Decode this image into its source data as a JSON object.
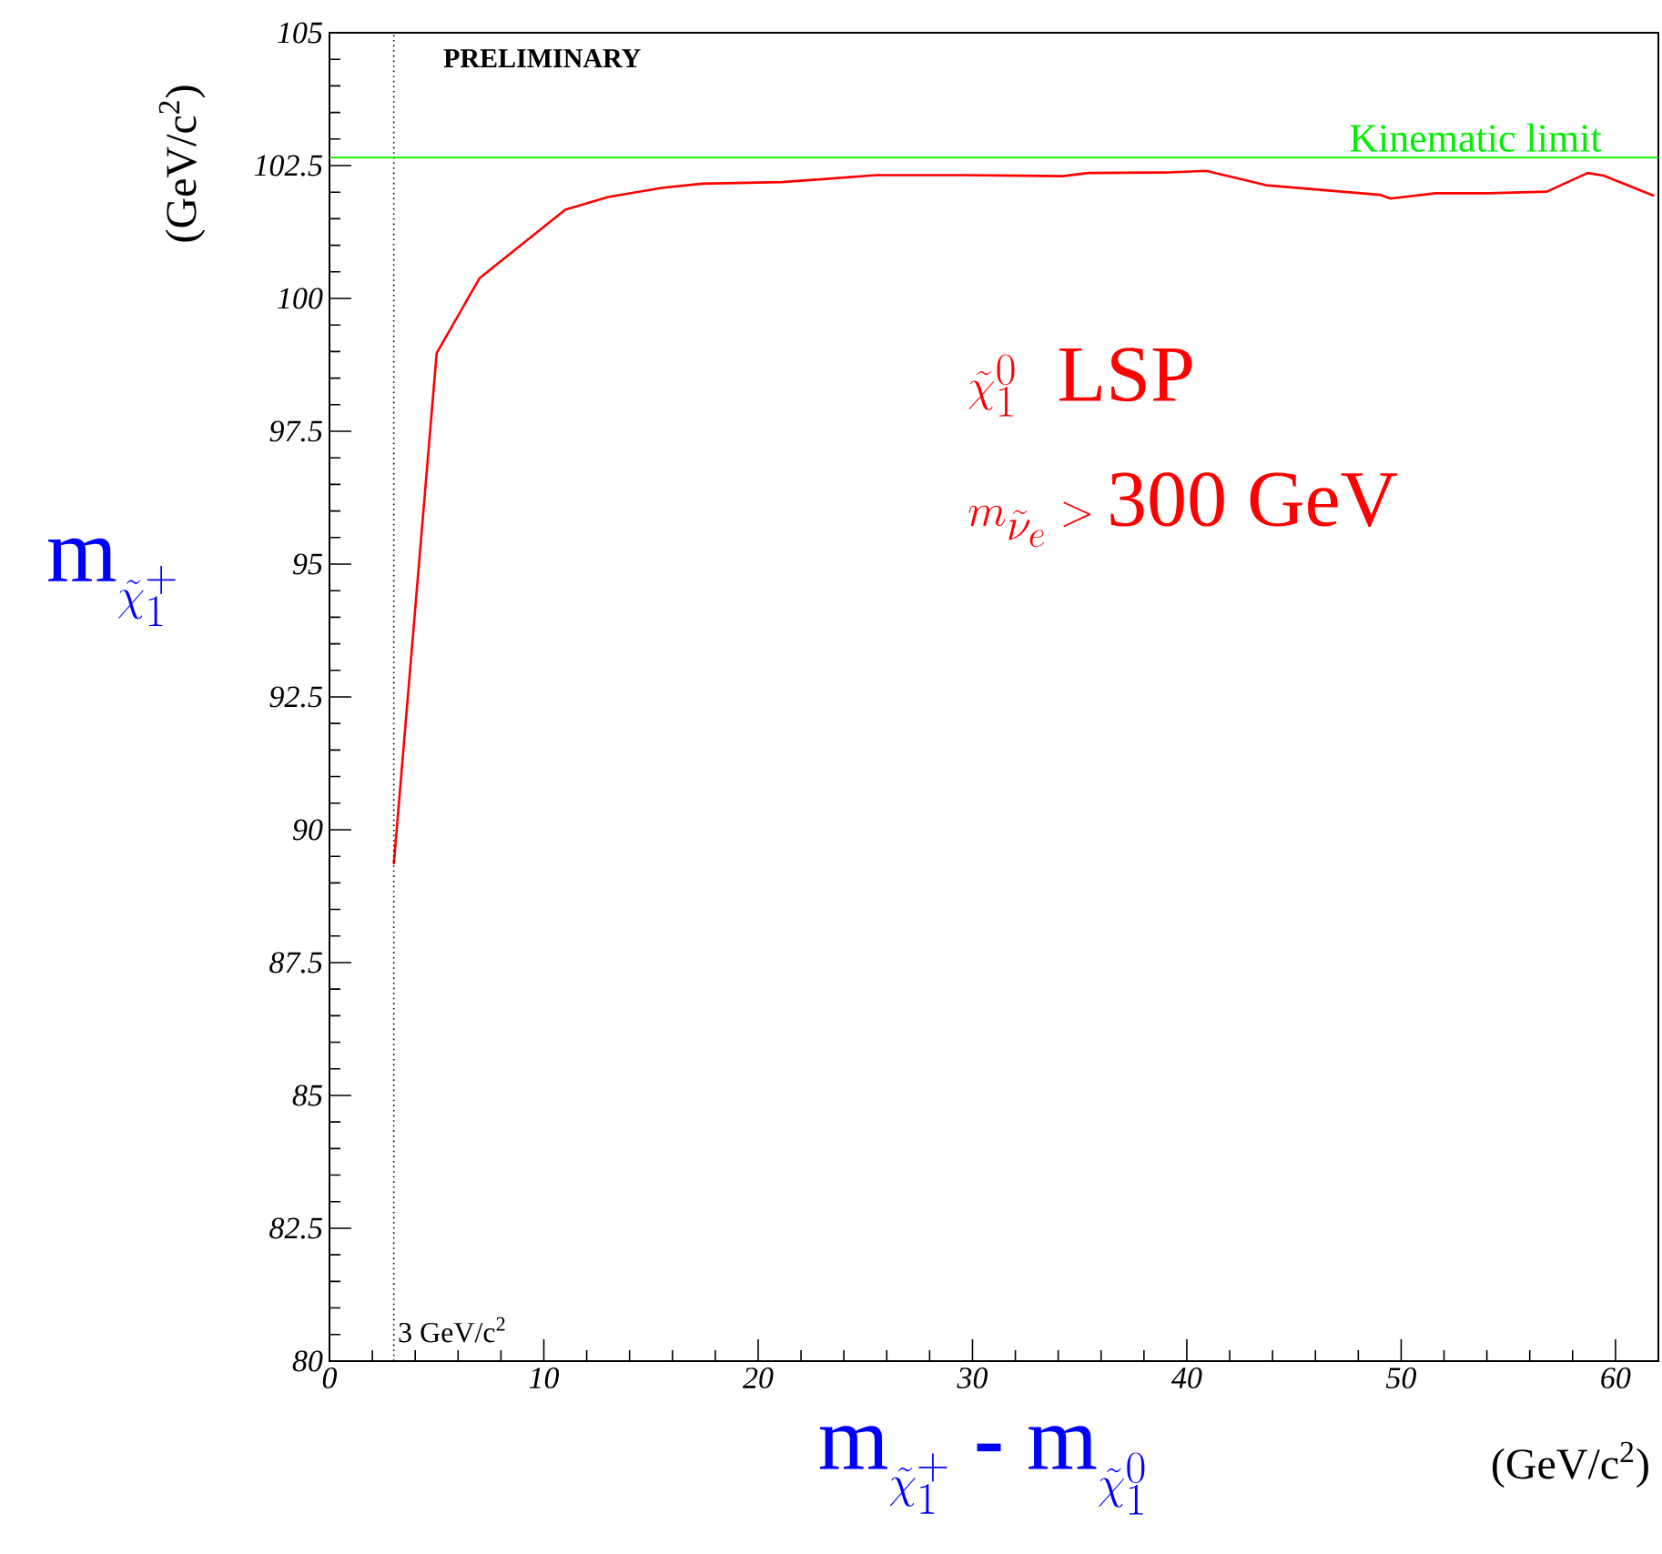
{
  "chart_data": {
    "type": "line",
    "xlabel": "\\mathrm{m}_{\\tilde{\\chi}^{+}_{1}}\\ \\textbf{-}\\ \\mathrm{m}_{\\tilde{\\chi}^{0}_{1}}",
    "ylabel": "\\mathrm{m}_{\\tilde{\\chi}^{+}_{1}}",
    "series": [
      {
        "color": "#ff0000",
        "x": [
          3,
          5,
          7,
          11,
          13,
          15.5,
          17.4,
          21.1,
          22.9,
          25.5,
          29.6,
          32.4,
          34.2,
          35.4,
          39.2,
          40.9,
          43.7,
          49,
          49.5,
          51.6,
          54.1,
          56.8,
          58.7,
          59.45,
          61.8
        ],
        "values": [
          89.35,
          98.97,
          100.38,
          101.67,
          101.91,
          102.08,
          102.16,
          102.19,
          102.24,
          102.32,
          102.32,
          102.31,
          102.3,
          102.36,
          102.37,
          102.4,
          102.13,
          101.95,
          101.88,
          101.98,
          101.98,
          102.01,
          102.36,
          102.31,
          101.93
        ]
      }
    ],
    "xlim": [
      0,
      62
    ],
    "ylim": [
      80,
      105
    ],
    "xticks": [
      0,
      10,
      20,
      30,
      40,
      50,
      60
    ],
    "yticks": [
      80,
      82.5,
      85,
      87.5,
      90,
      92.5,
      95,
      97.5,
      100,
      102.5,
      105
    ],
    "ref_lines": [
      {
        "axis": "x",
        "value": 3,
        "label": "3 GeV/c$^{2}$",
        "color": "#000000",
        "line_style": "dotted"
      },
      {
        "axis": "y",
        "value": 102.65,
        "label": "Kinematic limit",
        "color": "#00ee00",
        "line_style": "solid"
      }
    ],
    "annotations": [
      "PRELIMINARY",
      "(GeV/c$^{2}$)",
      "(GeV/c$^{2}$)",
      "\\tilde{\\chi}^{0}_{1}\\ \\ \\mathrm{LSP}",
      "m_{\\tilde{\\nu}_{e}} > \\mathrm{300\\ GeV}"
    ],
    "grid": false,
    "marker": "none",
    "line_style": "solid"
  }
}
